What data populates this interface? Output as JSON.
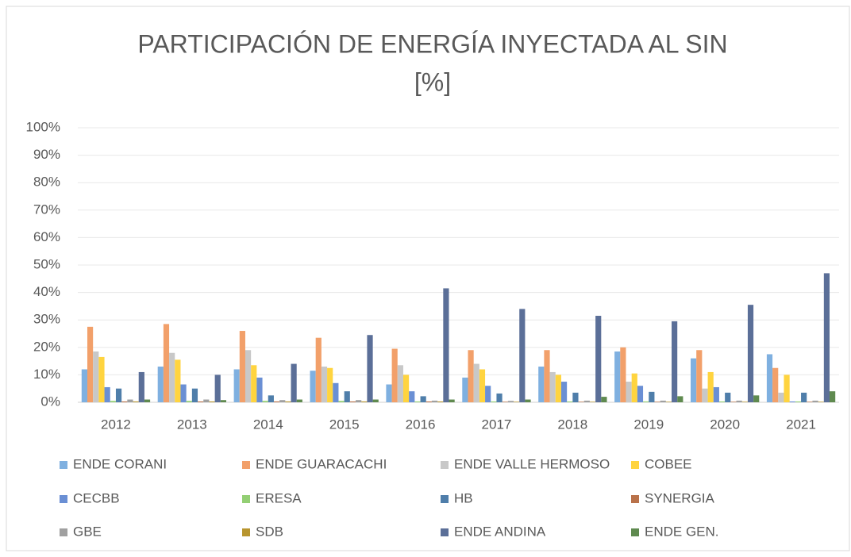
{
  "chart_data": {
    "type": "bar",
    "title": [
      "PARTICIPACIÓN DE ENERGÍA INYECTADA AL SIN",
      "[%]"
    ],
    "categories": [
      "2012",
      "2013",
      "2014",
      "2015",
      "2016",
      "2017",
      "2018",
      "2019",
      "2020",
      "2021"
    ],
    "series": [
      {
        "name": "ENDE CORANI",
        "color": "#7fb0e0",
        "values": [
          12,
          13,
          12,
          11.5,
          6.5,
          9,
          13,
          18.5,
          16,
          17.5
        ]
      },
      {
        "name": "ENDE GUARACACHI",
        "color": "#f2a06a",
        "values": [
          27.5,
          28.5,
          26,
          23.5,
          19.5,
          19,
          19,
          20,
          19,
          12.5
        ]
      },
      {
        "name": "ENDE VALLE HERMOSO",
        "color": "#c8c8c8",
        "values": [
          18.5,
          18,
          19,
          13,
          13.5,
          14,
          11,
          7.5,
          5,
          3.5
        ]
      },
      {
        "name": "COBEE",
        "color": "#ffd43f",
        "values": [
          16.5,
          15.5,
          13.5,
          12.5,
          10,
          12,
          10,
          10.5,
          11,
          10
        ]
      },
      {
        "name": "CECBB",
        "color": "#6a8fd4",
        "values": [
          5.5,
          6.5,
          9,
          7,
          4,
          6,
          7.5,
          6,
          5.5,
          0.3
        ]
      },
      {
        "name": "ERESA",
        "color": "#93cf74",
        "values": [
          0.5,
          0.5,
          0.5,
          0.5,
          0.3,
          0.3,
          0.3,
          0.3,
          0.3,
          0.3
        ]
      },
      {
        "name": "HB",
        "color": "#4f7eaa",
        "values": [
          5,
          5,
          2.5,
          4,
          2.2,
          3.2,
          3.5,
          3.8,
          3.5,
          3.5
        ]
      },
      {
        "name": "SYNERGIA",
        "color": "#b9724a",
        "values": [
          0.3,
          0.3,
          0.3,
          0.3,
          0.3,
          0.2,
          0.2,
          0.2,
          0.2,
          0.2
        ]
      },
      {
        "name": "GBE",
        "color": "#a0a0a0",
        "values": [
          1,
          1,
          0.8,
          0.8,
          0.6,
          0.5,
          0.6,
          0.6,
          0.6,
          0.6
        ]
      },
      {
        "name": "SDB",
        "color": "#b8952e",
        "values": [
          0.3,
          0.3,
          0.3,
          0.3,
          0.3,
          0.2,
          0.2,
          0.2,
          0.2,
          0.2
        ]
      },
      {
        "name": "ENDE ANDINA",
        "color": "#5b6f98",
        "values": [
          11,
          10,
          14,
          24.5,
          41.5,
          34,
          31.5,
          29.5,
          35.5,
          47
        ]
      },
      {
        "name": "ENDE GEN.",
        "color": "#5f8a4f",
        "values": [
          1,
          0.8,
          1,
          1,
          1,
          1,
          2,
          2.2,
          2.5,
          4
        ]
      }
    ],
    "ylim": [
      0,
      100
    ],
    "yticks": [
      {
        "value": 0,
        "label": "0%"
      },
      {
        "value": 10,
        "label": "10%"
      },
      {
        "value": 20,
        "label": "20%"
      },
      {
        "value": 30,
        "label": "30%"
      },
      {
        "value": 40,
        "label": "40%"
      },
      {
        "value": 50,
        "label": "50%"
      },
      {
        "value": 60,
        "label": "60%"
      },
      {
        "value": 70,
        "label": "70%"
      },
      {
        "value": 80,
        "label": "80%"
      },
      {
        "value": 90,
        "label": "90%"
      },
      {
        "value": 100,
        "label": "100%"
      }
    ],
    "grid": true,
    "legend": "bottom"
  }
}
